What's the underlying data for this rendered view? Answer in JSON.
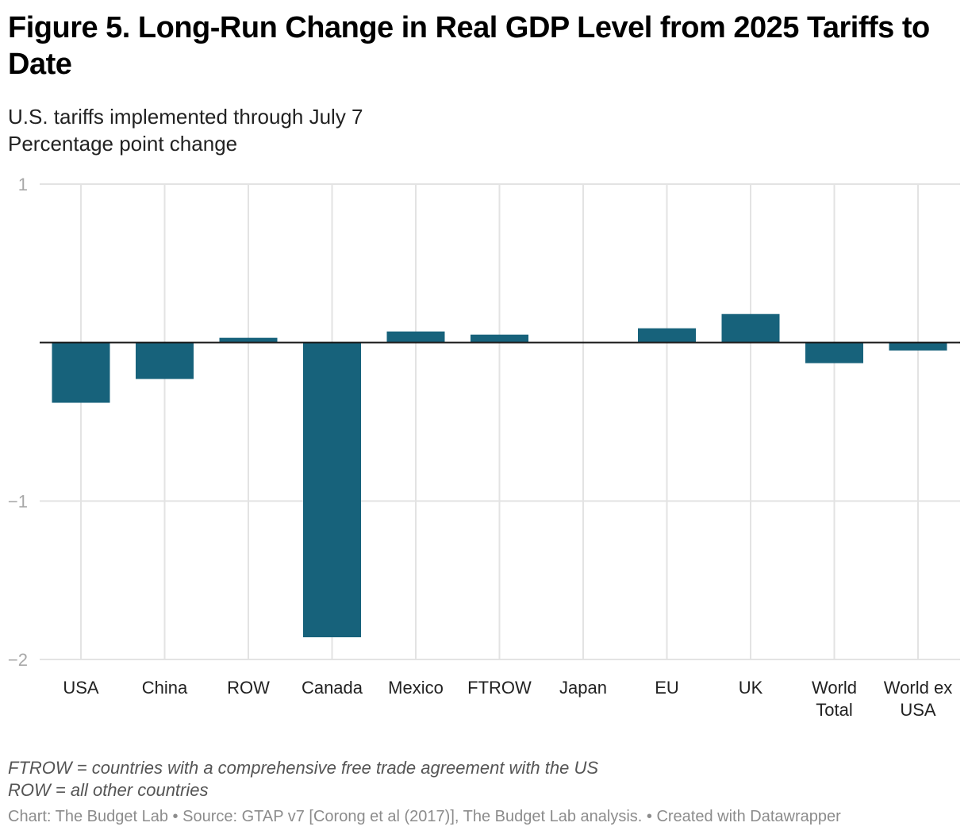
{
  "chart_data": {
    "type": "bar",
    "title": "Figure 5. Long-Run Change in Real GDP Level from 2025 Tariffs to Date",
    "subtitle": [
      "U.S. tariffs implemented through July 7",
      "Percentage point change"
    ],
    "xlabel": "",
    "ylabel": "Percentage point change",
    "ylim": [
      -2,
      1
    ],
    "yticks": [
      1,
      -1,
      -2
    ],
    "ytick_labels": [
      "1",
      "−1",
      "−2"
    ],
    "grid": true,
    "bar_color": "#17627b",
    "categories": [
      [
        "USA"
      ],
      [
        "China"
      ],
      [
        "ROW"
      ],
      [
        "Canada"
      ],
      [
        "Mexico"
      ],
      [
        "FTROW"
      ],
      [
        "Japan"
      ],
      [
        "EU"
      ],
      [
        "UK"
      ],
      [
        "World",
        "Total"
      ],
      [
        "World ex",
        "USA"
      ]
    ],
    "values": [
      -0.38,
      -0.23,
      0.03,
      -1.86,
      0.07,
      0.05,
      0.0,
      0.09,
      0.18,
      -0.13,
      -0.05
    ]
  },
  "notes": [
    "FTROW = countries with a comprehensive free trade agreement with the US",
    "ROW = all other countries"
  ],
  "footer": "Chart: The Budget Lab • Source: GTAP v7 [Corong et al (2017)], The Budget Lab analysis. • Created with Datawrapper"
}
